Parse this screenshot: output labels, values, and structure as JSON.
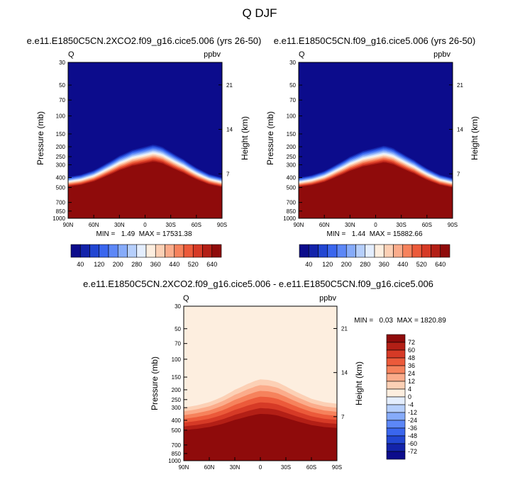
{
  "figure_title": "Q DJF",
  "colors": {
    "upper_ramp": [
      "#0c0c8c",
      "#1323aa",
      "#2246d2",
      "#3a66ee",
      "#5c87f7",
      "#86abfa",
      "#b6cffc",
      "#e4eefe",
      "#fdeedf",
      "#fcd0b5",
      "#fbac8b",
      "#f6825c",
      "#ec5a3a",
      "#d63a26",
      "#b31f16",
      "#8f0b0b"
    ],
    "diff_ramp": [
      "#0c0c8c",
      "#1323aa",
      "#2246d2",
      "#3a66ee",
      "#5c87f7",
      "#86abfa",
      "#b6cffc",
      "#e4eefe",
      "#fdeedf",
      "#fcd0b5",
      "#fbac8b",
      "#f6825c",
      "#ec5a3a",
      "#d63a26",
      "#b31f16",
      "#8f0b0b"
    ]
  },
  "chart_data": [
    {
      "type": "heatmap",
      "title": "e.e11.E1850C5CN.2XCO2.f09_g16.cice5.006 (yrs 26-50)",
      "left_label": "Q",
      "right_label": "ppbv",
      "ylabel": "Pressure (mb)",
      "ylabel_right": "Height (km)",
      "y_ticks": [
        "30",
        "50",
        "70",
        "100",
        "150",
        "200",
        "250",
        "300",
        "400",
        "500",
        "700",
        "850",
        "1000"
      ],
      "y_tick_values": [
        30,
        50,
        70,
        100,
        150,
        200,
        250,
        300,
        400,
        500,
        700,
        850,
        1000
      ],
      "height_ticks": [
        "21",
        "14",
        "7"
      ],
      "height_values": [
        21,
        14,
        7
      ],
      "x_ticks": [
        "90N",
        "60N",
        "30N",
        "0",
        "30S",
        "60S",
        "90S"
      ],
      "min_text": "MIN =   1.49  MAX = 17531.38",
      "legend_labels": [
        "40",
        "120",
        "200",
        "280",
        "360",
        "440",
        "520",
        "640"
      ],
      "top_profile_x": [
        -90,
        -75,
        -60,
        -45,
        -30,
        -15,
        -5,
        0,
        10,
        20,
        30,
        45,
        60,
        75,
        90
      ],
      "top_profile_p": [
        395,
        375,
        340,
        290,
        245,
        215,
        205,
        200,
        190,
        200,
        225,
        265,
        320,
        370,
        400
      ]
    },
    {
      "type": "heatmap",
      "title": "e.e11.E1850C5CN.f09_g16.cice5.006 (yrs 26-50)",
      "left_label": "Q",
      "right_label": "ppbv",
      "ylabel": "Pressure (mb)",
      "ylabel_right": "Height (km)",
      "y_ticks": [
        "30",
        "50",
        "70",
        "100",
        "150",
        "200",
        "250",
        "300",
        "400",
        "500",
        "700",
        "850",
        "1000"
      ],
      "y_tick_values": [
        30,
        50,
        70,
        100,
        150,
        200,
        250,
        300,
        400,
        500,
        700,
        850,
        1000
      ],
      "height_ticks": [
        "21",
        "14",
        "7"
      ],
      "height_values": [
        21,
        14,
        7
      ],
      "x_ticks": [
        "90N",
        "60N",
        "30N",
        "0",
        "30S",
        "60S",
        "90S"
      ],
      "min_text": "MIN =   1.44  MAX = 15882.66",
      "legend_labels": [
        "40",
        "120",
        "200",
        "280",
        "360",
        "440",
        "520",
        "640"
      ],
      "top_profile_x": [
        -90,
        -75,
        -60,
        -45,
        -30,
        -15,
        -5,
        0,
        10,
        20,
        30,
        45,
        60,
        75,
        90
      ],
      "top_profile_p": [
        400,
        380,
        345,
        295,
        250,
        220,
        210,
        205,
        195,
        205,
        230,
        270,
        325,
        375,
        405
      ]
    },
    {
      "type": "heatmap",
      "title": "e.e11.E1850C5CN.2XCO2.f09_g16.cice5.006 - e.e11.E1850C5CN.f09_g16.cice5.006",
      "left_label": "Q",
      "right_label": "ppbv",
      "ylabel": "Pressure (mb)",
      "ylabel_right": "Height (km)",
      "y_ticks": [
        "30",
        "50",
        "70",
        "100",
        "150",
        "200",
        "250",
        "300",
        "400",
        "500",
        "700",
        "850",
        "1000"
      ],
      "y_tick_values": [
        30,
        50,
        70,
        100,
        150,
        200,
        250,
        300,
        400,
        500,
        700,
        850,
        1000
      ],
      "height_ticks": [
        "21",
        "14",
        "7"
      ],
      "height_values": [
        21,
        14,
        7
      ],
      "x_ticks": [
        "90N",
        "60N",
        "30N",
        "0",
        "30S",
        "60S",
        "90S"
      ],
      "min_text": "MIN =   0.03  MAX = 1820.89",
      "legend_labels": [
        "72",
        "60",
        "48",
        "36",
        "24",
        "12",
        "4",
        "0",
        "-4",
        "-12",
        "-24",
        "-36",
        "-48",
        "-60",
        "-72"
      ],
      "top_profile_x": [
        -90,
        -75,
        -60,
        -45,
        -30,
        -15,
        -5,
        0,
        10,
        20,
        30,
        45,
        60,
        75,
        90
      ],
      "top_profile_p": [
        300,
        285,
        265,
        235,
        200,
        175,
        162,
        158,
        160,
        168,
        185,
        215,
        245,
        265,
        275
      ]
    }
  ]
}
